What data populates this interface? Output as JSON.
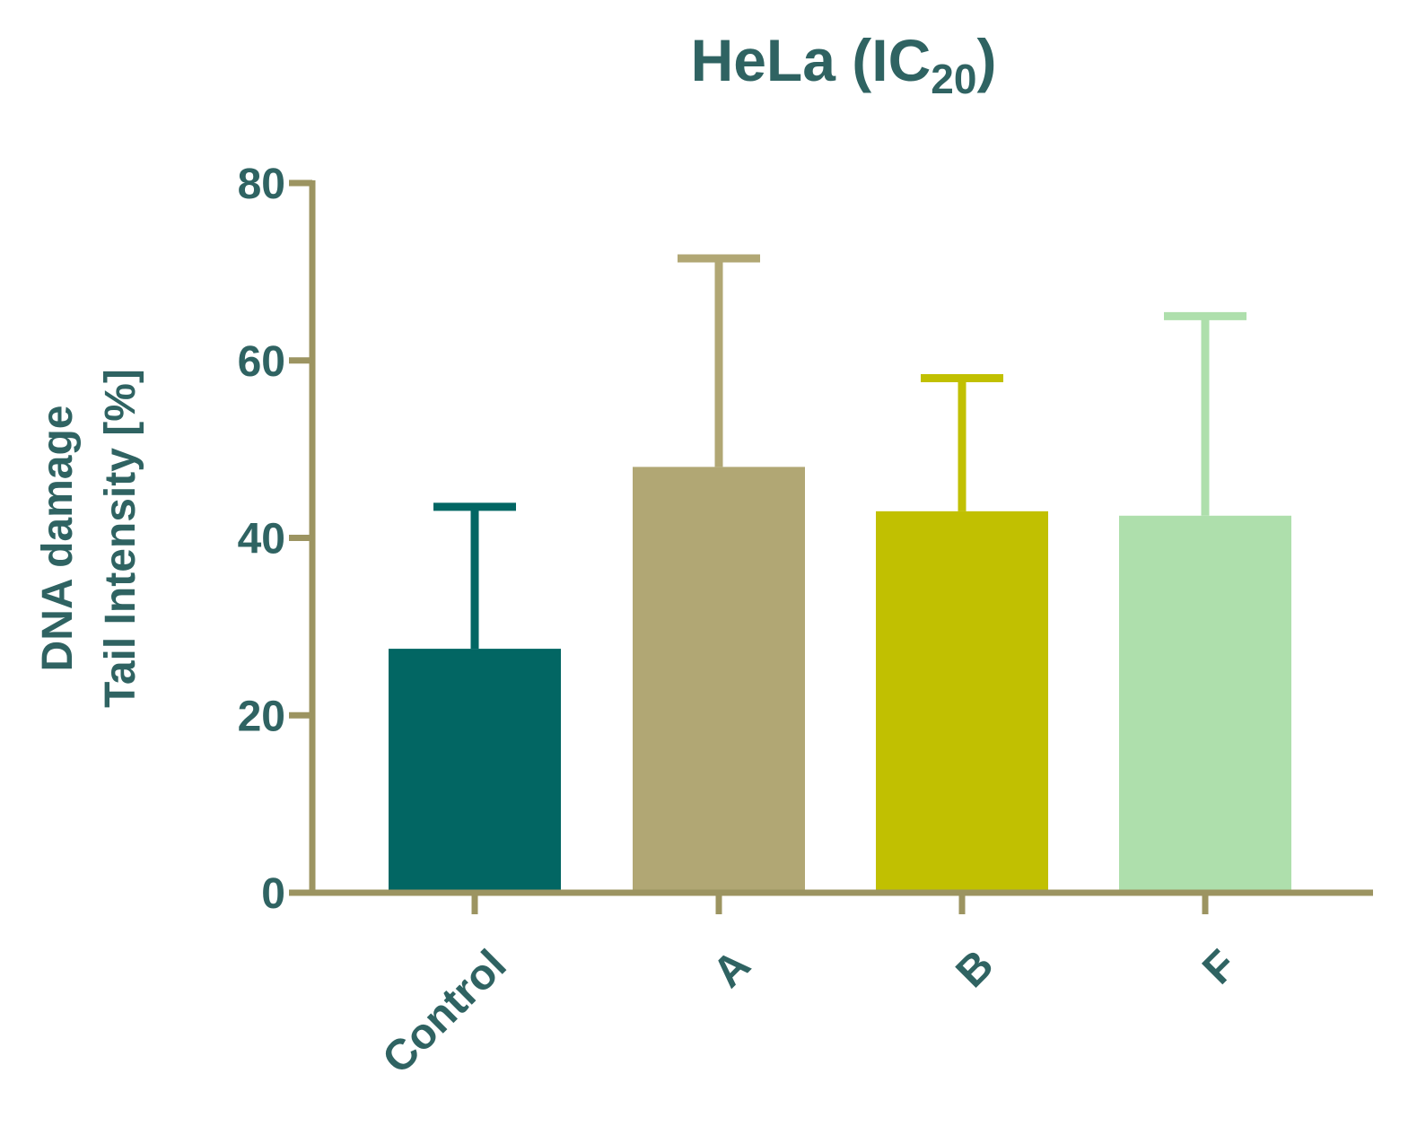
{
  "chart_data": {
    "type": "bar",
    "title": "HeLa (IC",
    "title_subscript": "20",
    "title_suffix": ")",
    "ylabel_line1": "DNA damage",
    "ylabel_line2": "Tail Intensity [%]",
    "xlabel": "",
    "ylim": [
      0,
      80
    ],
    "yticks": [
      "0",
      "20",
      "40",
      "60",
      "80"
    ],
    "categories": [
      "Control",
      "A",
      "B",
      "F"
    ],
    "values": [
      27.5,
      48,
      43,
      42.5
    ],
    "error_upper": [
      16,
      23.5,
      15,
      22.5
    ],
    "grid": false,
    "legend": "none",
    "colors": {
      "bars": [
        "#026663",
        "#b1a774",
        "#c1c001",
        "#aedfac"
      ],
      "axis": "#9c9461",
      "text": "#2f6362"
    }
  }
}
